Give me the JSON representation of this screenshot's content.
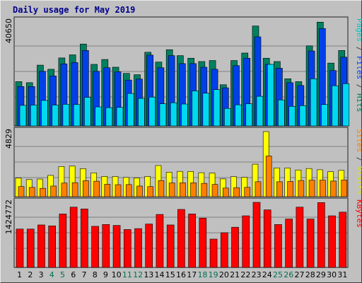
{
  "chart_data": {
    "title": "Daily usage for May 2019",
    "type": "bar",
    "days": [
      "1",
      "2",
      "3",
      "4",
      "5",
      "6",
      "7",
      "8",
      "9",
      "10",
      "11",
      "12",
      "13",
      "14",
      "15",
      "16",
      "17",
      "18",
      "19",
      "20",
      "21",
      "22",
      "23",
      "24",
      "25",
      "26",
      "27",
      "28",
      "29",
      "30",
      "31"
    ],
    "weekend_days": [
      "4",
      "5",
      "11",
      "12",
      "18",
      "19",
      "25",
      "26"
    ],
    "day_color": "#000000",
    "weekend_color": "#007050",
    "panels": [
      {
        "name": "hits",
        "ymax_label": "40650",
        "ylim": [
          0,
          40650
        ],
        "legend": [
          {
            "text": "Pages",
            "color": "#00c8c8"
          },
          {
            "text": " / ",
            "color": "#404040"
          },
          {
            "text": "Files",
            "color": "#0040ff"
          },
          {
            "text": " / ",
            "color": "#404040"
          },
          {
            "text": "Hits",
            "color": "#00805c"
          }
        ],
        "series": [
          {
            "name": "Hits",
            "color": "#008060",
            "values": [
              17200,
              16800,
              23600,
              22000,
              26400,
              27600,
              31800,
              23900,
              25800,
              22800,
              20400,
              19900,
              28600,
              24800,
              29600,
              27300,
              26300,
              25000,
              25400,
              16000,
              25400,
              28300,
              38800,
              26300,
              25000,
              18300,
              17200,
              31100,
              40300,
              24400,
              29300
            ]
          },
          {
            "name": "Files",
            "color": "#0040e8",
            "values": [
              15300,
              15300,
              21200,
              19400,
              24100,
              24600,
              29300,
              21200,
              22600,
              21000,
              17800,
              18200,
              27500,
              22600,
              27300,
              24200,
              24200,
              22800,
              22000,
              14800,
              23400,
              26300,
              34600,
              23900,
              22400,
              16800,
              15700,
              29100,
              37800,
              21500,
              26700
            ]
          },
          {
            "name": "Pages",
            "color": "#00d8f0",
            "values": [
              8000,
              8100,
              9900,
              8100,
              8400,
              8300,
              11100,
              7400,
              7100,
              7200,
              12600,
              10700,
              11200,
              8600,
              9000,
              8500,
              13600,
              12700,
              14100,
              6800,
              8200,
              8600,
              11500,
              23900,
              10100,
              7600,
              7900,
              18300,
              8300,
              15600,
              16400
            ]
          }
        ]
      },
      {
        "name": "visits",
        "ymax_label": "4829",
        "ylim": [
          0,
          4829
        ],
        "legend": [
          {
            "text": "Sites",
            "color": "#ff8000"
          },
          {
            "text": " / ",
            "color": "#404040"
          },
          {
            "text": "Visits",
            "color": "#e0e000"
          }
        ],
        "series": [
          {
            "name": "Visits",
            "color": "#ffff00",
            "values": [
              1380,
              1270,
              1310,
              1580,
              2240,
              2270,
              2080,
              1770,
              1500,
              1500,
              1430,
              1390,
              1500,
              2310,
              1820,
              1880,
              1870,
              1780,
              1750,
              1320,
              1490,
              1440,
              2410,
              4830,
              2130,
              2130,
              1980,
              2090,
              2000,
              1860,
              1950
            ]
          },
          {
            "name": "Sites",
            "color": "#ff8000",
            "values": [
              750,
              690,
              620,
              790,
              1010,
              1040,
              1190,
              1150,
              920,
              890,
              900,
              790,
              750,
              1200,
              1020,
              1030,
              1030,
              990,
              910,
              640,
              670,
              690,
              1110,
              3020,
              1110,
              1130,
              1200,
              1230,
              1230,
              1160,
              1240
            ]
          }
        ]
      },
      {
        "name": "kbytes",
        "ymax_label": "1424772",
        "ylim": [
          0,
          1424772
        ],
        "legend": [
          {
            "text": "KBytes",
            "color": "#ff0000"
          }
        ],
        "series": [
          {
            "name": "KBytes",
            "color": "#ff0000",
            "values": [
              840000,
              840000,
              930000,
              910000,
              1170000,
              1320000,
              1280000,
              900000,
              940000,
              920000,
              830000,
              850000,
              950000,
              1160000,
              930000,
              1270000,
              1170000,
              1080000,
              620000,
              760000,
              880000,
              1130000,
              1425000,
              1260000,
              940000,
              1060000,
              1320000,
              1060000,
              1420000,
              1130000,
              1210000
            ]
          }
        ]
      }
    ]
  }
}
